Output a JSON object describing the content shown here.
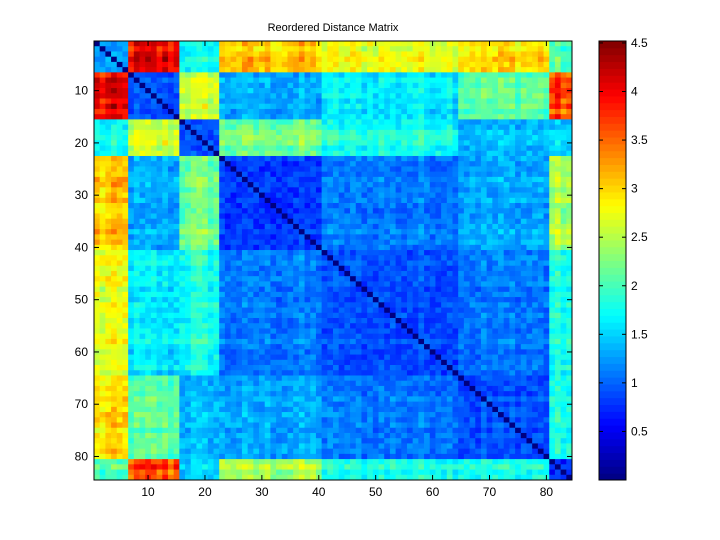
{
  "chart_data": {
    "type": "heatmap",
    "title": "Reordered Distance Matrix",
    "xlabel": "",
    "ylabel": "",
    "size": 84,
    "xlim": [
      0.5,
      84.5
    ],
    "ylim": [
      0.5,
      84.5
    ],
    "x_ticks": [
      10,
      20,
      30,
      40,
      50,
      60,
      70,
      80
    ],
    "y_ticks": [
      10,
      20,
      30,
      40,
      50,
      60,
      70,
      80
    ],
    "colormap": "jet",
    "clim": [
      0,
      4.52
    ],
    "colorbar_ticks": [
      0.5,
      1,
      1.5,
      2,
      2.5,
      3,
      3.5,
      4,
      4.5
    ],
    "colorbar_tick_labels": [
      "0.5",
      "1",
      "1.5",
      "2",
      "2.5",
      "3",
      "3.5",
      "4",
      "4.5"
    ],
    "diagonal_value": 0,
    "cluster_ranges": [
      [
        1,
        6
      ],
      [
        7,
        15
      ],
      [
        16,
        22
      ],
      [
        23,
        40
      ],
      [
        41,
        64
      ],
      [
        65,
        80
      ],
      [
        81,
        84
      ]
    ],
    "cluster_mean_distances": [
      [
        1.2,
        3.9,
        1.7,
        3.0,
        2.7,
        2.9,
        2.0
      ],
      [
        3.9,
        0.9,
        2.6,
        1.3,
        1.6,
        2.1,
        3.6
      ],
      [
        1.7,
        2.6,
        0.9,
        2.2,
        1.8,
        1.4,
        1.5
      ],
      [
        3.0,
        1.3,
        2.2,
        0.8,
        1.1,
        1.3,
        2.4
      ],
      [
        2.7,
        1.6,
        1.8,
        1.1,
        0.9,
        1.1,
        1.8
      ],
      [
        2.9,
        2.1,
        1.4,
        1.3,
        1.1,
        0.9,
        1.8
      ],
      [
        2.0,
        3.6,
        1.5,
        2.4,
        1.8,
        1.8,
        0.7
      ]
    ]
  }
}
